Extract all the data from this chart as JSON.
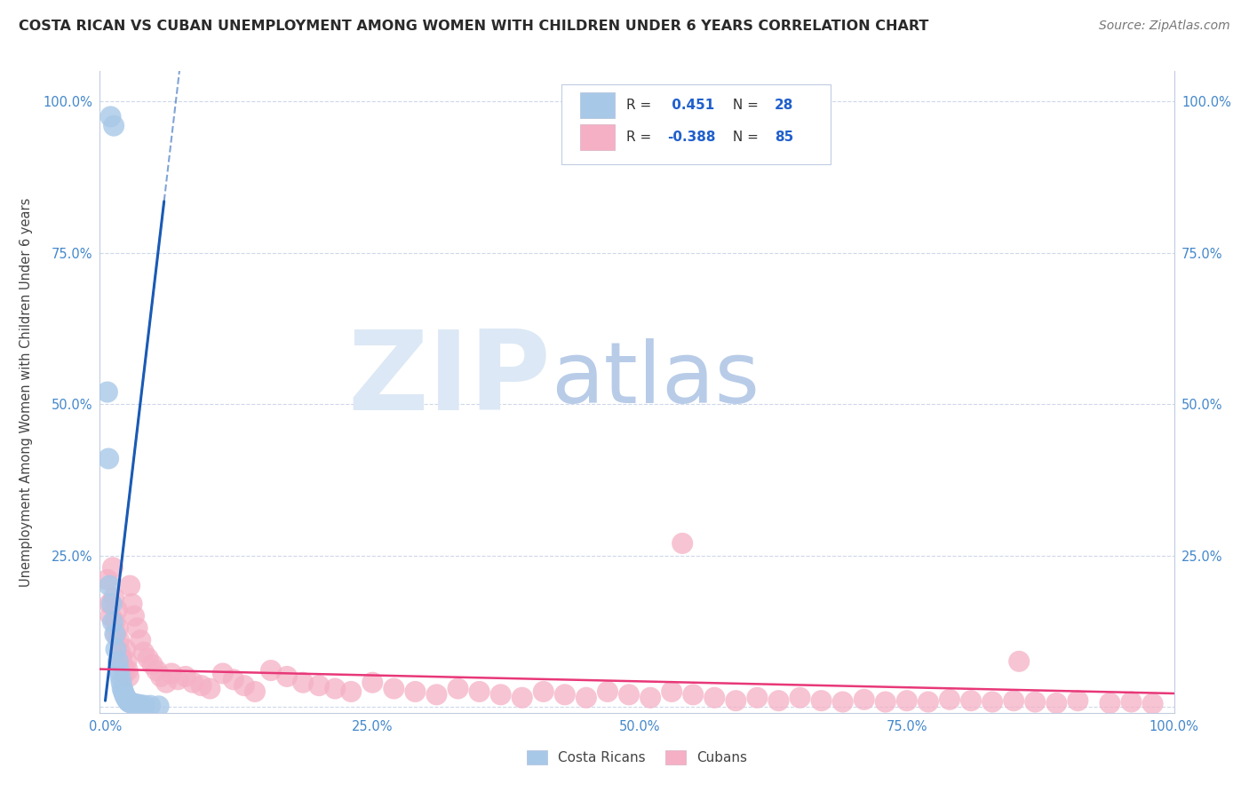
{
  "title": "COSTA RICAN VS CUBAN UNEMPLOYMENT AMONG WOMEN WITH CHILDREN UNDER 6 YEARS CORRELATION CHART",
  "source": "Source: ZipAtlas.com",
  "ylabel": "Unemployment Among Women with Children Under 6 years",
  "r_costa_rican": "0.451",
  "n_costa_rican": "28",
  "r_cuban": "-0.388",
  "n_cuban": "85",
  "xlim": [
    -0.005,
    1.0
  ],
  "ylim": [
    -0.01,
    1.05
  ],
  "xticks": [
    0.0,
    0.25,
    0.5,
    0.75,
    1.0
  ],
  "yticks": [
    0.0,
    0.25,
    0.5,
    0.75,
    1.0
  ],
  "xticklabels": [
    "0.0%",
    "25.0%",
    "50.0%",
    "75.0%",
    "100.0%"
  ],
  "yticklabels": [
    "",
    "25.0%",
    "50.0%",
    "75.0%",
    "100.0%"
  ],
  "right_yticklabels": [
    "",
    "25.0%",
    "50.0%",
    "75.0%",
    "100.0%"
  ],
  "costa_rican_color": "#a8c8e8",
  "cuban_color": "#f5b0c5",
  "costa_rican_line_color": "#1a5ab5",
  "cuban_line_color": "#e83878",
  "background_color": "#ffffff",
  "grid_color": "#c8d4e8",
  "watermark_zip_color": "#dce8f5",
  "watermark_atlas_color": "#b8cce8",
  "tick_color": "#4488cc",
  "legend_text_color": "#333333",
  "legend_n_color": "#4488cc",
  "costa_ricans_x": [
    0.005,
    0.008,
    0.002,
    0.003,
    0.004,
    0.006,
    0.007,
    0.009,
    0.01,
    0.012,
    0.013,
    0.014,
    0.015,
    0.016,
    0.017,
    0.018,
    0.019,
    0.02,
    0.021,
    0.022,
    0.023,
    0.025,
    0.027,
    0.03,
    0.033,
    0.037,
    0.042,
    0.05
  ],
  "costa_ricans_y": [
    0.975,
    0.96,
    0.52,
    0.41,
    0.2,
    0.17,
    0.14,
    0.12,
    0.095,
    0.075,
    0.06,
    0.05,
    0.04,
    0.03,
    0.025,
    0.02,
    0.016,
    0.013,
    0.01,
    0.008,
    0.007,
    0.006,
    0.005,
    0.004,
    0.003,
    0.002,
    0.002,
    0.001
  ],
  "cubans_x": [
    0.002,
    0.004,
    0.005,
    0.007,
    0.008,
    0.009,
    0.01,
    0.011,
    0.012,
    0.013,
    0.014,
    0.015,
    0.016,
    0.017,
    0.018,
    0.019,
    0.02,
    0.021,
    0.022,
    0.023,
    0.025,
    0.027,
    0.03,
    0.033,
    0.036,
    0.04,
    0.044,
    0.048,
    0.052,
    0.057,
    0.062,
    0.068,
    0.075,
    0.082,
    0.09,
    0.098,
    0.11,
    0.12,
    0.13,
    0.14,
    0.155,
    0.17,
    0.185,
    0.2,
    0.215,
    0.23,
    0.25,
    0.27,
    0.29,
    0.31,
    0.33,
    0.35,
    0.37,
    0.39,
    0.41,
    0.43,
    0.45,
    0.47,
    0.49,
    0.51,
    0.53,
    0.55,
    0.57,
    0.59,
    0.61,
    0.63,
    0.65,
    0.67,
    0.69,
    0.71,
    0.73,
    0.75,
    0.77,
    0.79,
    0.81,
    0.83,
    0.85,
    0.87,
    0.89,
    0.91,
    0.94,
    0.96,
    0.98,
    0.855,
    0.54
  ],
  "cubans_y": [
    0.21,
    0.17,
    0.15,
    0.23,
    0.18,
    0.14,
    0.12,
    0.16,
    0.13,
    0.11,
    0.09,
    0.08,
    0.07,
    0.065,
    0.055,
    0.095,
    0.075,
    0.06,
    0.05,
    0.2,
    0.17,
    0.15,
    0.13,
    0.11,
    0.09,
    0.08,
    0.07,
    0.06,
    0.05,
    0.04,
    0.055,
    0.045,
    0.05,
    0.04,
    0.035,
    0.03,
    0.055,
    0.045,
    0.035,
    0.025,
    0.06,
    0.05,
    0.04,
    0.035,
    0.03,
    0.025,
    0.04,
    0.03,
    0.025,
    0.02,
    0.03,
    0.025,
    0.02,
    0.015,
    0.025,
    0.02,
    0.015,
    0.025,
    0.02,
    0.015,
    0.025,
    0.02,
    0.015,
    0.01,
    0.015,
    0.01,
    0.015,
    0.01,
    0.008,
    0.012,
    0.008,
    0.01,
    0.008,
    0.012,
    0.01,
    0.008,
    0.01,
    0.008,
    0.006,
    0.01,
    0.006,
    0.008,
    0.005,
    0.075,
    0.27
  ]
}
